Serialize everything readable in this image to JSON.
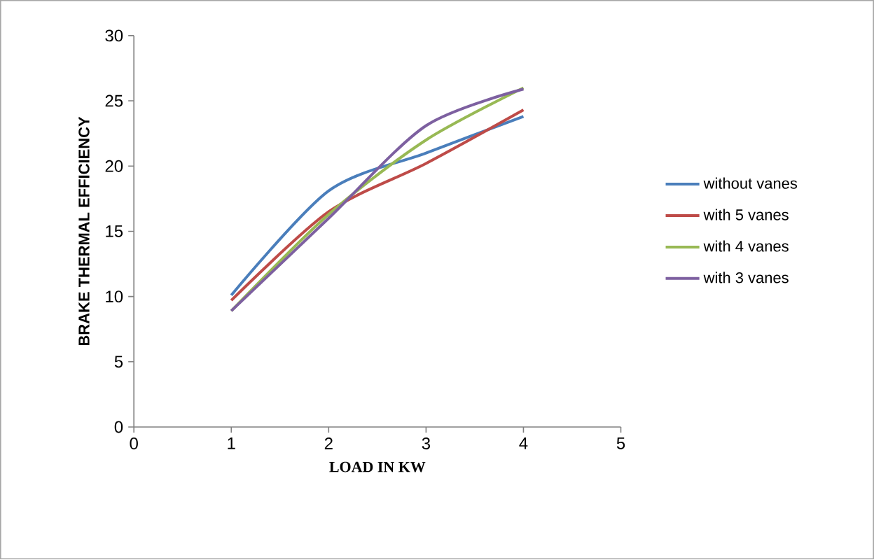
{
  "chart_data": {
    "type": "line",
    "xlabel": "LOAD IN KW",
    "ylabel": "BRAKE THERMAL EFFICIENCY",
    "x": [
      1,
      2,
      3,
      4
    ],
    "series": [
      {
        "name": "without vanes",
        "color": "#4a7ebb",
        "values": [
          10.1,
          18.1,
          21.0,
          23.8
        ]
      },
      {
        "name": "with 5 vanes",
        "color": "#be4b48",
        "values": [
          9.7,
          16.5,
          20.2,
          24.3
        ]
      },
      {
        "name": "with 4 vanes",
        "color": "#98b954",
        "values": [
          8.9,
          16.3,
          22.0,
          26.0
        ]
      },
      {
        "name": "with 3 vanes",
        "color": "#7d60a0",
        "values": [
          8.9,
          16.0,
          23.1,
          25.9
        ]
      }
    ],
    "xlim": [
      0,
      5
    ],
    "ylim": [
      0,
      30
    ],
    "xticks": [
      0,
      1,
      2,
      3,
      4,
      5
    ],
    "yticks": [
      0,
      5,
      10,
      15,
      20,
      25,
      30
    ],
    "grid": false,
    "legend": "right"
  }
}
